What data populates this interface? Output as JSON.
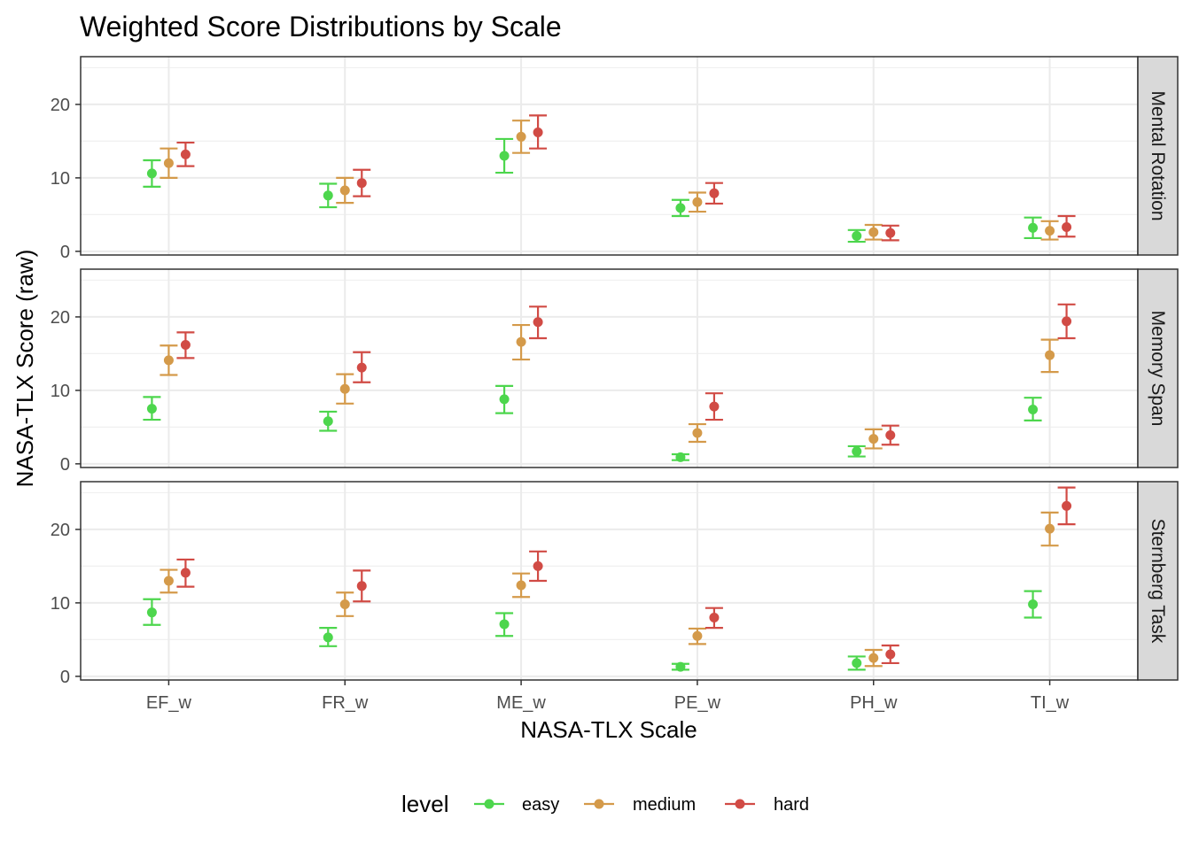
{
  "chart_data": {
    "type": "scatter",
    "title": "Weighted Score Distributions by Scale",
    "xlabel": "NASA-TLX Scale",
    "ylabel": "NASA-TLX Score (raw)",
    "categories": [
      "EF_w",
      "FR_w",
      "ME_w",
      "PE_w",
      "PH_w",
      "TI_w"
    ],
    "ylim": [
      -0.5,
      26.5
    ],
    "yticks": [
      0,
      10,
      20
    ],
    "grid": true,
    "legend": {
      "title": "level",
      "position": "bottom",
      "entries": [
        {
          "name": "easy",
          "color": "#4dd64d"
        },
        {
          "name": "medium",
          "color": "#d49a4a"
        },
        {
          "name": "hard",
          "color": "#d14b45"
        }
      ]
    },
    "panels": [
      {
        "name": "Mental Rotation",
        "series": [
          {
            "name": "easy",
            "values": [
              10.6,
              7.6,
              13.0,
              5.9,
              2.1,
              3.2
            ],
            "lower": [
              8.8,
              6.0,
              10.7,
              4.8,
              1.3,
              1.8
            ],
            "upper": [
              12.4,
              9.2,
              15.3,
              7.0,
              2.9,
              4.6
            ]
          },
          {
            "name": "medium",
            "values": [
              12.0,
              8.3,
              15.6,
              6.7,
              2.6,
              2.8
            ],
            "lower": [
              10.0,
              6.6,
              13.4,
              5.4,
              1.6,
              1.6
            ],
            "upper": [
              14.0,
              10.0,
              17.8,
              8.0,
              3.6,
              4.1
            ]
          },
          {
            "name": "hard",
            "values": [
              13.2,
              9.3,
              16.2,
              7.9,
              2.5,
              3.3
            ],
            "lower": [
              11.6,
              7.5,
              14.0,
              6.5,
              1.5,
              2.0
            ],
            "upper": [
              14.8,
              11.1,
              18.5,
              9.3,
              3.5,
              4.8
            ]
          }
        ]
      },
      {
        "name": "Memory Span",
        "series": [
          {
            "name": "easy",
            "values": [
              7.5,
              5.8,
              8.8,
              0.9,
              1.7,
              7.4
            ],
            "lower": [
              6.0,
              4.5,
              6.9,
              0.5,
              1.0,
              5.9
            ],
            "upper": [
              9.1,
              7.1,
              10.6,
              1.3,
              2.4,
              9.0
            ]
          },
          {
            "name": "medium",
            "values": [
              14.1,
              10.2,
              16.6,
              4.2,
              3.4,
              14.8
            ],
            "lower": [
              12.1,
              8.2,
              14.2,
              3.0,
              2.1,
              12.5
            ],
            "upper": [
              16.1,
              12.2,
              18.9,
              5.4,
              4.7,
              16.9
            ]
          },
          {
            "name": "hard",
            "values": [
              16.2,
              13.1,
              19.3,
              7.8,
              3.9,
              19.4
            ],
            "lower": [
              14.4,
              11.1,
              17.1,
              6.0,
              2.6,
              17.1
            ],
            "upper": [
              17.9,
              15.2,
              21.4,
              9.6,
              5.2,
              21.7
            ]
          }
        ]
      },
      {
        "name": "Sternberg Task",
        "series": [
          {
            "name": "easy",
            "values": [
              8.7,
              5.3,
              7.1,
              1.3,
              1.8,
              9.8
            ],
            "lower": [
              7.0,
              4.1,
              5.5,
              0.9,
              0.9,
              8.0
            ],
            "upper": [
              10.5,
              6.6,
              8.6,
              1.7,
              2.7,
              11.6
            ]
          },
          {
            "name": "medium",
            "values": [
              13.0,
              9.8,
              12.4,
              5.5,
              2.5,
              20.1
            ],
            "lower": [
              11.4,
              8.2,
              10.8,
              4.4,
              1.4,
              17.8
            ],
            "upper": [
              14.5,
              11.4,
              14.0,
              6.5,
              3.6,
              22.3
            ]
          },
          {
            "name": "hard",
            "values": [
              14.1,
              12.3,
              15.0,
              8.0,
              3.0,
              23.2
            ],
            "lower": [
              12.2,
              10.2,
              13.0,
              6.6,
              1.8,
              20.7
            ],
            "upper": [
              15.9,
              14.4,
              17.0,
              9.3,
              4.2,
              25.7
            ]
          }
        ]
      }
    ]
  }
}
